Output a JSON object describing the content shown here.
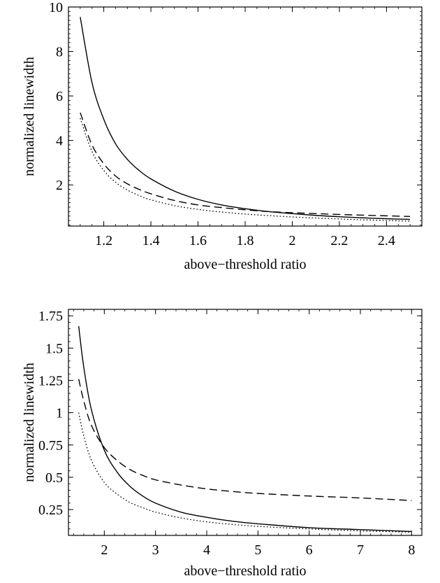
{
  "chart_data": [
    {
      "type": "line",
      "xlabel": "above−threshold ratio",
      "ylabel": "normalized linewidth",
      "xlim": [
        1.05,
        2.55
      ],
      "ylim": [
        0.15,
        10.0
      ],
      "x_ticks": [
        1.2,
        1.4,
        1.6,
        1.8,
        2.0,
        2.2,
        2.4
      ],
      "x_tick_labels": [
        "1.2",
        "1.4",
        "1.6",
        "1.8",
        "2",
        "2.2",
        "2.4"
      ],
      "y_ticks": [
        2,
        4,
        6,
        8,
        10
      ],
      "y_tick_labels": [
        "2",
        "4",
        "6",
        "8",
        "10"
      ],
      "grid": false,
      "series": [
        {
          "style": "solid",
          "x": [
            1.1,
            1.15,
            1.2,
            1.25,
            1.3,
            1.35,
            1.4,
            1.5,
            1.6,
            1.7,
            1.8,
            1.9,
            2.0,
            2.1,
            2.2,
            2.3,
            2.4,
            2.5
          ],
          "y": [
            9.55,
            6.6,
            4.95,
            3.85,
            3.15,
            2.65,
            2.27,
            1.72,
            1.35,
            1.1,
            0.93,
            0.8,
            0.71,
            0.63,
            0.57,
            0.52,
            0.48,
            0.45
          ]
        },
        {
          "style": "dashed",
          "x": [
            1.1,
            1.15,
            1.2,
            1.25,
            1.3,
            1.35,
            1.4,
            1.5,
            1.6,
            1.7,
            1.8,
            1.9,
            2.0,
            2.1,
            2.2,
            2.3,
            2.4,
            2.5
          ],
          "y": [
            5.25,
            3.8,
            2.95,
            2.4,
            2.05,
            1.8,
            1.6,
            1.3,
            1.1,
            0.98,
            0.88,
            0.8,
            0.75,
            0.71,
            0.67,
            0.64,
            0.61,
            0.58
          ]
        },
        {
          "style": "dotted",
          "x": [
            1.1,
            1.15,
            1.2,
            1.25,
            1.3,
            1.35,
            1.4,
            1.5,
            1.6,
            1.7,
            1.8,
            1.9,
            2.0,
            2.1,
            2.2,
            2.3,
            2.4,
            2.5
          ],
          "y": [
            5.0,
            3.5,
            2.65,
            2.12,
            1.77,
            1.52,
            1.33,
            1.07,
            0.9,
            0.78,
            0.69,
            0.62,
            0.56,
            0.51,
            0.47,
            0.43,
            0.4,
            0.37
          ]
        }
      ]
    },
    {
      "type": "line",
      "xlabel": "above−threshold ratio",
      "ylabel": "normalized linewidth",
      "xlim": [
        1.3,
        8.2
      ],
      "ylim": [
        0.05,
        1.8
      ],
      "x_ticks": [
        2,
        3,
        4,
        5,
        6,
        7,
        8
      ],
      "x_tick_labels": [
        "2",
        "3",
        "4",
        "5",
        "6",
        "7",
        "8"
      ],
      "y_ticks": [
        0.25,
        0.5,
        0.75,
        1.0,
        1.25,
        1.5,
        1.75
      ],
      "y_tick_labels": [
        "0.25",
        "0.5",
        "0.75",
        "1",
        "1.25",
        "1.5",
        "1.75"
      ],
      "grid": false,
      "series": [
        {
          "style": "solid",
          "x": [
            1.5,
            1.6,
            1.75,
            2.0,
            2.25,
            2.5,
            2.75,
            3.0,
            3.5,
            4.0,
            4.5,
            5.0,
            6.0,
            7.0,
            8.0
          ],
          "y": [
            1.67,
            1.35,
            1.02,
            0.71,
            0.54,
            0.43,
            0.355,
            0.3,
            0.23,
            0.19,
            0.16,
            0.14,
            0.11,
            0.095,
            0.08
          ]
        },
        {
          "style": "dashed",
          "x": [
            1.5,
            1.6,
            1.75,
            2.0,
            2.25,
            2.5,
            2.75,
            3.0,
            3.5,
            4.0,
            4.5,
            5.0,
            6.0,
            7.0,
            8.0
          ],
          "y": [
            1.26,
            1.09,
            0.9,
            0.73,
            0.63,
            0.56,
            0.515,
            0.48,
            0.44,
            0.41,
            0.39,
            0.375,
            0.355,
            0.34,
            0.32
          ]
        },
        {
          "style": "dotted",
          "x": [
            1.5,
            1.6,
            1.75,
            2.0,
            2.25,
            2.5,
            2.75,
            3.0,
            3.5,
            4.0,
            4.5,
            5.0,
            6.0,
            7.0,
            8.0
          ],
          "y": [
            1.0,
            0.82,
            0.63,
            0.46,
            0.37,
            0.305,
            0.265,
            0.23,
            0.185,
            0.155,
            0.135,
            0.12,
            0.1,
            0.085,
            0.075
          ]
        }
      ]
    }
  ]
}
